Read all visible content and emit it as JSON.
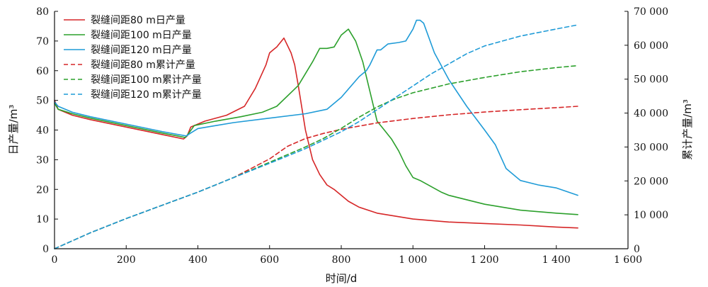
{
  "chart_data": {
    "type": "line",
    "xlabel": "时间/d",
    "ylabel_left": "日产量/m³",
    "ylabel_right": "累计产量/m³",
    "xlim": [
      0,
      1600
    ],
    "ylim_left": [
      0,
      80
    ],
    "ylim_right": [
      0,
      70000
    ],
    "xticks": [
      0,
      200,
      400,
      600,
      800,
      1000,
      1200,
      1400,
      1600
    ],
    "xtick_labels": [
      "0",
      "200",
      "400",
      "600",
      "800",
      "1 000",
      "1 200",
      "1 400",
      "1 600"
    ],
    "yticks_left": [
      0,
      10,
      20,
      30,
      40,
      50,
      60,
      70,
      80
    ],
    "ytick_labels_left": [
      "0",
      "10",
      "20",
      "30",
      "40",
      "50",
      "60",
      "70",
      "80"
    ],
    "yticks_right": [
      0,
      10000,
      20000,
      30000,
      40000,
      50000,
      60000,
      70000
    ],
    "ytick_labels_right": [
      "0",
      "10 000",
      "20 000",
      "30 000",
      "40 000",
      "50 000",
      "60 000",
      "70 000"
    ],
    "grid": false,
    "legend_position": "top-left",
    "series": [
      {
        "name": "裂缝间距80 m日产量",
        "axis": "left",
        "color": "#d62728",
        "dash": "solid",
        "x": [
          0,
          10,
          50,
          100,
          200,
          300,
          360,
          370,
          380,
          420,
          480,
          530,
          560,
          590,
          600,
          610,
          620,
          640,
          660,
          670,
          680,
          700,
          720,
          740,
          760,
          780,
          800,
          820,
          850,
          900,
          1000,
          1100,
          1200,
          1300,
          1400,
          1460
        ],
        "y": [
          50,
          47,
          45,
          43.5,
          41,
          38.5,
          37,
          38,
          41,
          43,
          45,
          48,
          54,
          62,
          66,
          67,
          68,
          71,
          66,
          62,
          55,
          40,
          30,
          25,
          21.5,
          20,
          18,
          16,
          14,
          12,
          10,
          9,
          8.5,
          8,
          7.3,
          7
        ]
      },
      {
        "name": "裂缝间距100 m日产量",
        "axis": "left",
        "color": "#2ca02c",
        "dash": "solid",
        "x": [
          0,
          10,
          50,
          100,
          200,
          300,
          365,
          375,
          390,
          450,
          520,
          580,
          620,
          680,
          720,
          740,
          760,
          780,
          800,
          820,
          840,
          860,
          880,
          900,
          920,
          940,
          960,
          980,
          1000,
          1020,
          1050,
          1080,
          1100,
          1200,
          1300,
          1400,
          1460
        ],
        "y": [
          49,
          47,
          45.5,
          44,
          41.5,
          39,
          37.5,
          39,
          41.5,
          43,
          44.5,
          46,
          48,
          55,
          63,
          67.5,
          67.5,
          68,
          72,
          74,
          70,
          63,
          53,
          43,
          40,
          37,
          33,
          28,
          24,
          23,
          21,
          19,
          18,
          15,
          13,
          12,
          11.5
        ]
      },
      {
        "name": "裂缝间距120 m日产量",
        "axis": "left",
        "color": "#1f9bd7",
        "dash": "solid",
        "x": [
          0,
          10,
          50,
          100,
          200,
          300,
          368,
          380,
          400,
          450,
          500,
          600,
          700,
          760,
          800,
          850,
          870,
          880,
          900,
          910,
          930,
          960,
          980,
          1000,
          1010,
          1020,
          1030,
          1060,
          1100,
          1150,
          1200,
          1230,
          1260,
          1300,
          1350,
          1400,
          1460
        ],
        "y": [
          49.5,
          48,
          46,
          44.5,
          42,
          39.5,
          38,
          39,
          40.5,
          41.5,
          42.5,
          44,
          45.5,
          47,
          51,
          58,
          60,
          62,
          67,
          67,
          69,
          69.5,
          70,
          74,
          77,
          77,
          76,
          66,
          57,
          48,
          40,
          35,
          27,
          23,
          21.5,
          20.5,
          18
        ]
      },
      {
        "name": "裂缝间距80 m累计产量",
        "axis": "right",
        "color": "#d62728",
        "dash": "dashed",
        "x": [
          0,
          100,
          200,
          300,
          400,
          500,
          600,
          650,
          700,
          750,
          800,
          900,
          1000,
          1100,
          1200,
          1300,
          1400,
          1460
        ],
        "y": [
          0,
          4700,
          8900,
          12800,
          16700,
          21000,
          26500,
          30200,
          32500,
          34000,
          35200,
          37100,
          38400,
          39500,
          40300,
          41000,
          41600,
          42000
        ]
      },
      {
        "name": "裂缝间距100 m累计产量",
        "axis": "right",
        "color": "#2ca02c",
        "dash": "dashed",
        "x": [
          0,
          100,
          200,
          300,
          400,
          500,
          600,
          700,
          750,
          800,
          850,
          900,
          950,
          1000,
          1100,
          1200,
          1300,
          1400,
          1460
        ],
        "y": [
          0,
          4700,
          8900,
          12800,
          16700,
          21000,
          25500,
          30000,
          32500,
          35500,
          38800,
          41800,
          44200,
          46000,
          48600,
          50500,
          52200,
          53400,
          54000
        ]
      },
      {
        "name": "裂缝间距120 m累计产量",
        "axis": "right",
        "color": "#1f9bd7",
        "dash": "dashed",
        "x": [
          0,
          100,
          200,
          300,
          400,
          500,
          600,
          700,
          800,
          850,
          900,
          950,
          1000,
          1050,
          1100,
          1150,
          1200,
          1300,
          1400,
          1460
        ],
        "y": [
          0,
          4700,
          8900,
          12800,
          16700,
          21000,
          25200,
          29500,
          34500,
          37500,
          41000,
          44500,
          48000,
          51500,
          54500,
          57500,
          59800,
          62700,
          64800,
          66000
        ]
      }
    ]
  }
}
